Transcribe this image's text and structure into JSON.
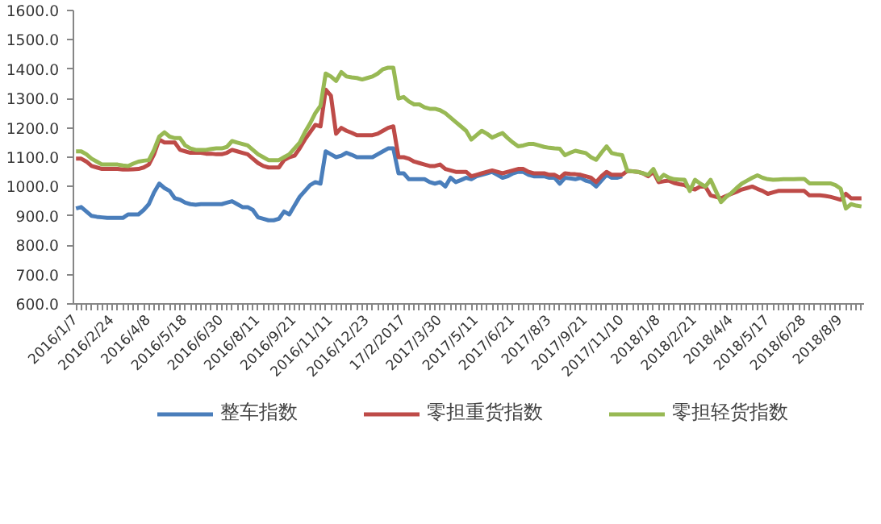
{
  "chart_data": {
    "type": "line",
    "categories": [
      "2016/1/7",
      null,
      null,
      null,
      null,
      null,
      null,
      "2016/2/24",
      null,
      null,
      null,
      null,
      null,
      null,
      "2016/4/8",
      null,
      null,
      null,
      null,
      null,
      null,
      "2016/5/18",
      null,
      null,
      null,
      null,
      null,
      null,
      "2016/6/30",
      null,
      null,
      null,
      null,
      null,
      null,
      "2016/8/11",
      null,
      null,
      null,
      null,
      null,
      null,
      "2016/9/21",
      null,
      null,
      null,
      null,
      null,
      null,
      "2016/11/11",
      null,
      null,
      null,
      null,
      null,
      null,
      "2016/12/23",
      null,
      null,
      null,
      null,
      null,
      null,
      "17/2/2017",
      null,
      null,
      null,
      null,
      null,
      null,
      "2017/3/30",
      null,
      null,
      null,
      null,
      null,
      null,
      "2017/5/11",
      null,
      null,
      null,
      null,
      null,
      null,
      "2017/6/21",
      null,
      null,
      null,
      null,
      null,
      null,
      "2017/8/3",
      null,
      null,
      null,
      null,
      null,
      null,
      "2017/9/21",
      null,
      null,
      null,
      null,
      null,
      null,
      "2017/11/10",
      null,
      null,
      null,
      null,
      null,
      null,
      "2018/1/8",
      null,
      null,
      null,
      null,
      null,
      null,
      "2018/2/21",
      null,
      null,
      null,
      null,
      null,
      null,
      "2018/4/4",
      null,
      null,
      null,
      null,
      null,
      null,
      "2018/5/17",
      null,
      null,
      null,
      null,
      null,
      null,
      "2018/6/28",
      null,
      null,
      null,
      null,
      null,
      null,
      "2018/8/9",
      null,
      null,
      null,
      null
    ],
    "ylim": [
      600,
      1600
    ],
    "yticks": [
      {
        "value": 600,
        "label": "600.0"
      },
      {
        "value": 700,
        "label": "700.0"
      },
      {
        "value": 800,
        "label": "800.0"
      },
      {
        "value": 900,
        "label": "900.0"
      },
      {
        "value": 1000,
        "label": "1000.0"
      },
      {
        "value": 1100,
        "label": "1100.0"
      },
      {
        "value": 1200,
        "label": "1200.0"
      },
      {
        "value": 1300,
        "label": "1300.0"
      },
      {
        "value": 1400,
        "label": "1400.0"
      },
      {
        "value": 1500,
        "label": "1500.0"
      },
      {
        "value": 1600,
        "label": "1600.0"
      }
    ],
    "grid": false,
    "legend": "bottom",
    "marker": "none",
    "line_style": "solid",
    "series": [
      {
        "name": "整车指数",
        "color": "#4a7ebb",
        "values": [
          925,
          930,
          915,
          900,
          897,
          895,
          893,
          893,
          893,
          893,
          905,
          905,
          905,
          920,
          940,
          980,
          1010,
          995,
          985,
          960,
          955,
          945,
          940,
          938,
          940,
          940,
          940,
          940,
          940,
          945,
          950,
          940,
          930,
          930,
          920,
          895,
          890,
          885,
          885,
          890,
          915,
          905,
          935,
          965,
          985,
          1005,
          1015,
          1010,
          1120,
          1110,
          1100,
          1105,
          1115,
          1108,
          1100,
          1100,
          1100,
          1100,
          1110,
          1120,
          1130,
          1130,
          1045,
          1045,
          1025,
          1025,
          1025,
          1025,
          1015,
          1010,
          1015,
          1000,
          1030,
          1015,
          1022,
          1030,
          1025,
          1035,
          1040,
          1045,
          1050,
          1040,
          1030,
          1035,
          1045,
          1050,
          1050,
          1040,
          1035,
          1035,
          1035,
          1030,
          1030,
          1010,
          1030,
          1028,
          1025,
          1030,
          1020,
          1015,
          1000,
          1020,
          1040,
          1030,
          1030,
          1035,
          null,
          null,
          null,
          null,
          null,
          null,
          null,
          null,
          null,
          null,
          null,
          null,
          null,
          null,
          null,
          null,
          null,
          null,
          null,
          null,
          null,
          null,
          null,
          null,
          null,
          null,
          null,
          null,
          null,
          null,
          null,
          null,
          null,
          null,
          null,
          null,
          null,
          null,
          null,
          null,
          null,
          null,
          null,
          null,
          null,
          null
        ]
      },
      {
        "name": "零担重货指数",
        "color": "#be4b48",
        "values": [
          1095,
          1095,
          1085,
          1070,
          1065,
          1060,
          1060,
          1060,
          1060,
          1058,
          1058,
          1059,
          1060,
          1065,
          1075,
          1110,
          1160,
          1150,
          1150,
          1150,
          1125,
          1120,
          1115,
          1115,
          1115,
          1112,
          1112,
          1110,
          1110,
          1115,
          1125,
          1120,
          1115,
          1110,
          1095,
          1080,
          1070,
          1065,
          1065,
          1065,
          1090,
          1100,
          1105,
          1130,
          1160,
          1185,
          1210,
          1205,
          1330,
          1310,
          1180,
          1200,
          1190,
          1183,
          1175,
          1175,
          1175,
          1175,
          1180,
          1190,
          1200,
          1205,
          1100,
          1100,
          1095,
          1085,
          1080,
          1075,
          1070,
          1070,
          1075,
          1060,
          1055,
          1050,
          1050,
          1050,
          1035,
          1040,
          1045,
          1050,
          1055,
          1050,
          1045,
          1050,
          1055,
          1060,
          1060,
          1050,
          1045,
          1045,
          1045,
          1040,
          1040,
          1030,
          1045,
          1043,
          1042,
          1040,
          1035,
          1030,
          1015,
          1035,
          1050,
          1040,
          1040,
          1040,
          1053,
          1052,
          1050,
          1045,
          1035,
          1050,
          1015,
          1018,
          1020,
          1012,
          1008,
          1005,
          995,
          990,
          1000,
          1000,
          970,
          965,
          960,
          968,
          975,
          982,
          990,
          995,
          1000,
          992,
          985,
          975,
          980,
          985,
          985,
          985,
          985,
          985,
          985,
          970,
          970,
          970,
          968,
          965,
          960,
          955,
          975,
          960,
          960,
          960
        ]
      },
      {
        "name": "零担轻货指数",
        "color": "#98b954",
        "values": [
          1120,
          1120,
          1110,
          1095,
          1085,
          1075,
          1075,
          1075,
          1075,
          1072,
          1070,
          1078,
          1085,
          1088,
          1090,
          1125,
          1170,
          1185,
          1170,
          1165,
          1165,
          1140,
          1130,
          1125,
          1125,
          1125,
          1128,
          1130,
          1130,
          1135,
          1155,
          1150,
          1145,
          1140,
          1125,
          1110,
          1100,
          1090,
          1090,
          1090,
          1100,
          1110,
          1130,
          1150,
          1185,
          1215,
          1250,
          1275,
          1385,
          1375,
          1360,
          1390,
          1375,
          1372,
          1370,
          1365,
          1370,
          1375,
          1385,
          1400,
          1405,
          1405,
          1300,
          1305,
          1290,
          1280,
          1280,
          1270,
          1265,
          1265,
          1260,
          1250,
          1235,
          1220,
          1205,
          1190,
          1160,
          1175,
          1190,
          1180,
          1167,
          1175,
          1182,
          1165,
          1150,
          1137,
          1140,
          1145,
          1145,
          1140,
          1135,
          1132,
          1130,
          1129,
          1107,
          1115,
          1122,
          1118,
          1114,
          1100,
          1091,
          1115,
          1137,
          1114,
          1110,
          1107,
          1053,
          1052,
          1050,
          1045,
          1040,
          1060,
          1023,
          1040,
          1030,
          1025,
          1024,
          1023,
          985,
          1023,
          1010,
          1000,
          1023,
          985,
          947,
          965,
          978,
          995,
          1010,
          1020,
          1030,
          1038,
          1030,
          1025,
          1023,
          1024,
          1025,
          1025,
          1025,
          1026,
          1026,
          1011,
          1011,
          1011,
          1011,
          1011,
          1005,
          993,
          925,
          940,
          935,
          932
        ]
      }
    ]
  }
}
